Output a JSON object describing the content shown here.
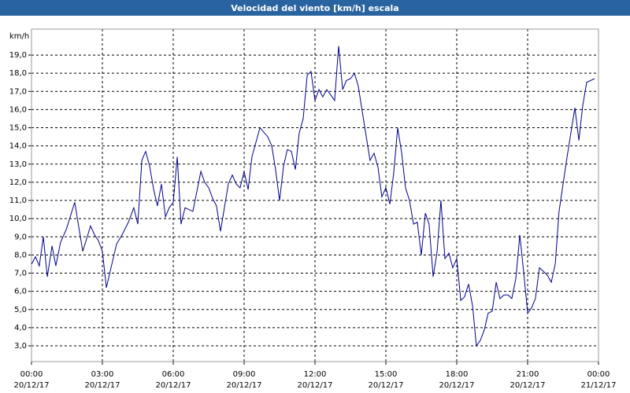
{
  "chart_data": {
    "type": "line",
    "title": "Velocidad del viento [km/h] escala",
    "y_label": "km/h",
    "x": [
      0,
      0.17,
      0.33,
      0.5,
      0.67,
      0.87,
      1.03,
      1.23,
      1.47,
      1.83,
      2.17,
      2.5,
      2.67,
      2.83,
      3,
      3.17,
      3.33,
      3.6,
      3.83,
      4.1,
      4.33,
      4.5,
      4.67,
      4.83,
      5,
      5.17,
      5.33,
      5.5,
      5.67,
      5.83,
      6,
      6.17,
      6.33,
      6.5,
      6.83,
      7.17,
      7.33,
      7.5,
      7.67,
      7.83,
      8,
      8.33,
      8.5,
      8.67,
      8.83,
      9,
      9.17,
      9.33,
      9.67,
      10,
      10.17,
      10.33,
      10.5,
      10.67,
      10.83,
      11,
      11.17,
      11.33,
      11.5,
      11.67,
      11.83,
      12,
      12.17,
      12.33,
      12.5,
      12.67,
      12.83,
      13,
      13.17,
      13.33,
      13.5,
      13.67,
      13.83,
      14,
      14.17,
      14.33,
      14.5,
      14.67,
      14.83,
      15,
      15.17,
      15.33,
      15.5,
      15.67,
      15.83,
      16,
      16.17,
      16.33,
      16.5,
      16.67,
      16.83,
      17,
      17.17,
      17.33,
      17.5,
      17.67,
      17.83,
      18,
      18.17,
      18.33,
      18.5,
      18.67,
      18.83,
      19,
      19.17,
      19.33,
      19.5,
      19.67,
      19.83,
      20,
      20.17,
      20.33,
      20.5,
      20.67,
      20.83,
      21,
      21.17,
      21.33,
      21.5,
      21.67,
      21.83,
      22,
      22.17,
      22.33,
      22.67,
      23,
      23.17,
      23.33,
      23.5,
      23.83
    ],
    "series": [
      {
        "color": "#00008b",
        "values": [
          7.5,
          7.9,
          7.4,
          9.0,
          6.8,
          8.5,
          7.4,
          8.7,
          9.4,
          10.9,
          8.2,
          9.6,
          9.1,
          8.8,
          8.2,
          6.2,
          7.1,
          8.6,
          9.1,
          9.8,
          10.6,
          9.7,
          13.2,
          13.7,
          12.9,
          11.6,
          10.7,
          11.9,
          10.1,
          10.6,
          10.9,
          13.4,
          9.7,
          10.6,
          10.4,
          12.6,
          12.0,
          11.7,
          11.1,
          10.7,
          9.3,
          11.9,
          12.4,
          11.9,
          11.7,
          12.6,
          11.6,
          13.4,
          15.0,
          14.5,
          14.0,
          12.7,
          11.0,
          12.9,
          13.8,
          13.7,
          12.7,
          14.7,
          15.5,
          17.9,
          18.1,
          16.5,
          17.1,
          16.7,
          17.1,
          16.8,
          16.5,
          19.5,
          17.1,
          17.6,
          17.7,
          18.0,
          17.3,
          15.9,
          14.5,
          13.2,
          13.6,
          12.8,
          11.2,
          11.7,
          10.8,
          12.5,
          15.0,
          13.6,
          11.7,
          11.0,
          9.7,
          9.8,
          8.0,
          10.3,
          9.7,
          6.8,
          8.2,
          11.0,
          7.8,
          8.1,
          7.3,
          7.8,
          5.5,
          5.7,
          6.4,
          5.2,
          3.0,
          3.3,
          3.9,
          4.8,
          4.9,
          6.5,
          5.6,
          5.8,
          5.8,
          5.6,
          6.7,
          9.1,
          7.1,
          4.8,
          5.1,
          5.6,
          7.3,
          7.1,
          6.9,
          6.5,
          7.5,
          10.4,
          13.4,
          16.1,
          14.3,
          16.2,
          17.5,
          17.7
        ]
      }
    ],
    "xlim": [
      0,
      24
    ],
    "xticks": [
      {
        "value": 0,
        "label": "00:00\n20/12/17"
      },
      {
        "value": 3,
        "label": "03:00\n20/12/17"
      },
      {
        "value": 6,
        "label": "06:00\n20/12/17"
      },
      {
        "value": 9,
        "label": "09:00\n20/12/17"
      },
      {
        "value": 12,
        "label": "12:00\n20/12/17"
      },
      {
        "value": 15,
        "label": "15:00\n20/12/17"
      },
      {
        "value": 18,
        "label": "18:00\n20/12/17"
      },
      {
        "value": 21,
        "label": "21:00\n20/12/17"
      },
      {
        "value": 24,
        "label": "00:00\n21/12/17"
      }
    ],
    "ylim": [
      2.135,
      20.43
    ],
    "yticks": [
      {
        "value": 3,
        "label": "3,0"
      },
      {
        "value": 4,
        "label": "4,0"
      },
      {
        "value": 5,
        "label": "5,0"
      },
      {
        "value": 6,
        "label": "6,0"
      },
      {
        "value": 7,
        "label": "7,0"
      },
      {
        "value": 8,
        "label": "8,0"
      },
      {
        "value": 9,
        "label": "9,0"
      },
      {
        "value": 10,
        "label": "10,0"
      },
      {
        "value": 11,
        "label": "11,0"
      },
      {
        "value": 12,
        "label": "12,0"
      },
      {
        "value": 13,
        "label": "13,0"
      },
      {
        "value": 14,
        "label": "14,0"
      },
      {
        "value": 15,
        "label": "15,0"
      },
      {
        "value": 16,
        "label": "16,0"
      },
      {
        "value": 17,
        "label": "17,0"
      },
      {
        "value": 18,
        "label": "18,0"
      },
      {
        "value": 19,
        "label": "19,0"
      }
    ],
    "grid": true
  }
}
